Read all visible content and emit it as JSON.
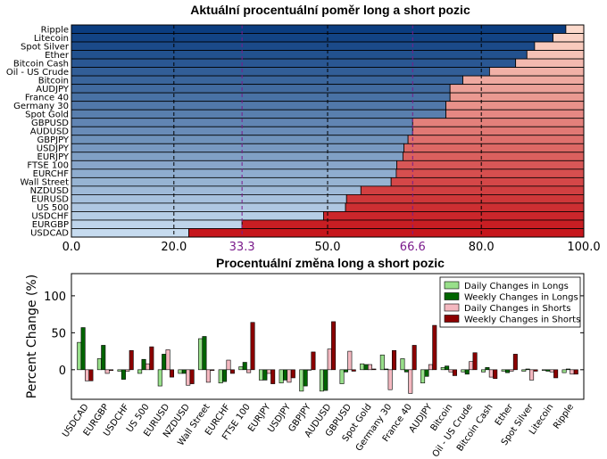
{
  "chart_data": [
    {
      "type": "bar",
      "orientation": "horizontal",
      "stacked": true,
      "title": "Aktuální procentuální poměr long a short pozic",
      "categories": [
        "Ripple",
        "Litecoin",
        "Spot Silver",
        "Ether",
        "Bitcoin Cash",
        "Oil - US Crude",
        "Bitcoin",
        "AUDJPY",
        "France 40",
        "Germany 30",
        "Spot Gold",
        "GBPUSD",
        "AUDUSD",
        "GBPJPY",
        "USDJPY",
        "EURJPY",
        "FTSE 100",
        "EURCHF",
        "Wall Street",
        "NZDUSD",
        "EURUSD",
        "US 500",
        "USDCHF",
        "EURGBP",
        "USDCAD"
      ],
      "long_values": [
        96.5,
        94.0,
        90.4,
        88.9,
        86.7,
        81.6,
        76.4,
        73.9,
        73.9,
        73.1,
        73.1,
        66.6,
        66.6,
        65.7,
        64.9,
        64.7,
        63.5,
        63.4,
        62.4,
        56.5,
        53.7,
        53.5,
        49.2,
        33.3,
        22.9
      ],
      "xlim": [
        0,
        100
      ],
      "xticks": [
        "0.0",
        "20.0",
        "33.3",
        "50.0",
        "66.6",
        "80.0",
        "100.0"
      ],
      "highlight_ticks": [
        "33.3",
        "66.6"
      ],
      "grid": "vertical",
      "colors": {
        "long_dark": "#0b3d80",
        "long_light": "#c6dbef",
        "short_dark": "#c6161c",
        "short_light": "#fcdacc",
        "highlight": "#7b1c8c"
      }
    },
    {
      "type": "bar",
      "title": "Procentuální změna long a short pozic",
      "ylabel": "Percent Change (%)",
      "ylim": [
        -40,
        130
      ],
      "yticks": [
        "0",
        "50",
        "100"
      ],
      "legend_position": "top-right",
      "categories": [
        "USDCAD",
        "EURGBP",
        "USDCHF",
        "US 500",
        "EURUSD",
        "NZDUSD",
        "Wall Street",
        "EURCHF",
        "FTSE 100",
        "EURJPY",
        "USDJPY",
        "GBPJPY",
        "AUDUSD",
        "GBPUSD",
        "Spot Gold",
        "Germany 30",
        "France 40",
        "AUDJPY",
        "Bitcoin",
        "Oil - US Crude",
        "Bitcoin Cash",
        "Ether",
        "Spot Silver",
        "Litecoin",
        "Ripple"
      ],
      "series": [
        {
          "name": "Daily Changes in Longs",
          "color": "#98df8a",
          "values": [
            37,
            15,
            -2,
            -5,
            -22,
            -5,
            42,
            -18,
            4,
            -14,
            -18,
            -29,
            -29,
            -19,
            8,
            20,
            15,
            -18,
            3,
            -3,
            -3,
            -2,
            -2,
            -1,
            -4
          ]
        },
        {
          "name": "Weekly Changes in Longs",
          "color": "#006400",
          "values": [
            57,
            33,
            -13,
            14,
            21,
            -5,
            45,
            -16,
            10,
            -14,
            -14,
            -22,
            -28,
            -3,
            7,
            1,
            -3,
            -9,
            5,
            -6,
            3,
            -4,
            1,
            -2,
            1
          ]
        },
        {
          "name": "Daily Changes in Shorts",
          "color": "#f4b8c0",
          "values": [
            -15,
            -5,
            -2,
            8,
            27,
            -21,
            -17,
            13,
            -4,
            -5,
            -17,
            0,
            28,
            25,
            7,
            -27,
            -32,
            7,
            -3,
            11,
            -10,
            -2,
            -14,
            -3,
            -6
          ]
        },
        {
          "name": "Weekly Changes in Shorts",
          "color": "#8b0000",
          "values": [
            -15,
            -1,
            26,
            31,
            -10,
            -19,
            -1,
            -5,
            64,
            -19,
            -11,
            24,
            65,
            -2,
            1,
            26,
            33,
            60,
            -8,
            23,
            -12,
            21,
            -2,
            -11,
            -6
          ]
        }
      ]
    }
  ]
}
